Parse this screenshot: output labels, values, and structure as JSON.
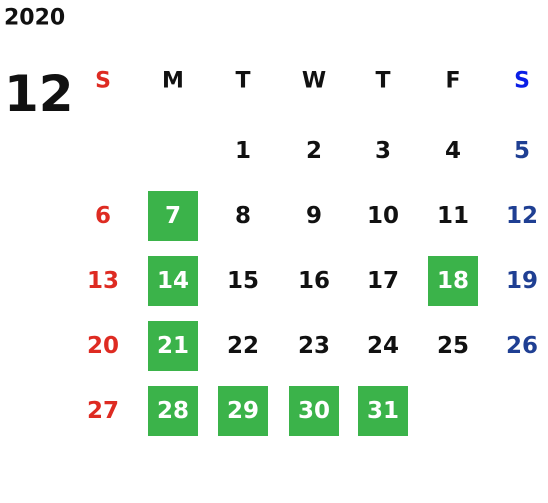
{
  "calendar": {
    "year": "2020",
    "month": "12",
    "weekdays": [
      "S",
      "M",
      "T",
      "W",
      "T",
      "F",
      "S"
    ],
    "weeks": [
      [
        null,
        null,
        {
          "day": "1"
        },
        {
          "day": "2"
        },
        {
          "day": "3"
        },
        {
          "day": "4"
        },
        {
          "day": "5"
        }
      ],
      [
        {
          "day": "6"
        },
        {
          "day": "7",
          "highlight": true
        },
        {
          "day": "8"
        },
        {
          "day": "9"
        },
        {
          "day": "10"
        },
        {
          "day": "11"
        },
        {
          "day": "12"
        }
      ],
      [
        {
          "day": "13"
        },
        {
          "day": "14",
          "highlight": true
        },
        {
          "day": "15"
        },
        {
          "day": "16"
        },
        {
          "day": "17"
        },
        {
          "day": "18",
          "highlight": true
        },
        {
          "day": "19"
        }
      ],
      [
        {
          "day": "20"
        },
        {
          "day": "21",
          "highlight": true
        },
        {
          "day": "22"
        },
        {
          "day": "23"
        },
        {
          "day": "24"
        },
        {
          "day": "25"
        },
        {
          "day": "26"
        }
      ],
      [
        {
          "day": "27"
        },
        {
          "day": "28",
          "highlight": true
        },
        {
          "day": "29",
          "highlight": true
        },
        {
          "day": "30",
          "highlight": true
        },
        {
          "day": "31",
          "highlight": true
        },
        null,
        null
      ]
    ],
    "colors": {
      "sunday": "#de2b22",
      "saturday_header": "#0a1ee6",
      "saturday": "#1f3f93",
      "weekday": "#111111",
      "highlight_bg": "#3bb34a",
      "highlight_text": "#ffffff"
    }
  }
}
